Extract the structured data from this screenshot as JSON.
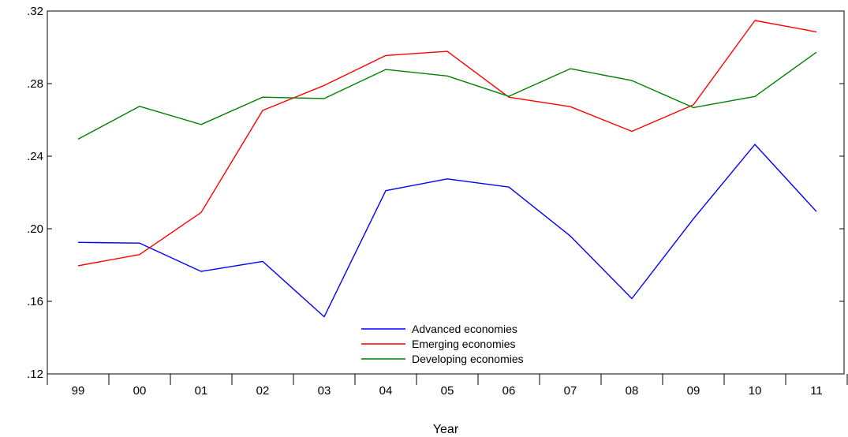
{
  "chart_data": {
    "type": "line",
    "title": "",
    "xlabel": "Year",
    "ylabel": "",
    "categories": [
      "99",
      "00",
      "01",
      "02",
      "03",
      "04",
      "05",
      "06",
      "07",
      "08",
      "09",
      "10",
      "11"
    ],
    "ylim": [
      0.12,
      0.32
    ],
    "yticks": [
      0.12,
      0.16,
      0.2,
      0.24,
      0.28,
      0.32
    ],
    "ytick_labels": [
      ".12",
      ".16",
      ".20",
      ".24",
      ".28",
      ".32"
    ],
    "grid": false,
    "legend_position": "bottom-center",
    "series": [
      {
        "name": "Advanced economies",
        "color": "#0000ff",
        "values": [
          0.1925,
          0.1921,
          0.1765,
          0.182,
          0.1515,
          0.221,
          0.2275,
          0.223,
          0.196,
          0.1615,
          0.2055,
          0.2465,
          0.2095
        ]
      },
      {
        "name": "Emerging economies",
        "color": "#ff0000",
        "values": [
          0.1796,
          0.1858,
          0.209,
          0.2652,
          0.279,
          0.2955,
          0.2978,
          0.2725,
          0.2673,
          0.2537,
          0.2683,
          0.3148,
          0.3085
        ]
      },
      {
        "name": "Developing economies",
        "color": "#008000",
        "values": [
          0.2494,
          0.2675,
          0.2575,
          0.2725,
          0.2718,
          0.2878,
          0.2842,
          0.273,
          0.2882,
          0.2817,
          0.2668,
          0.2729,
          0.2973
        ]
      }
    ]
  }
}
